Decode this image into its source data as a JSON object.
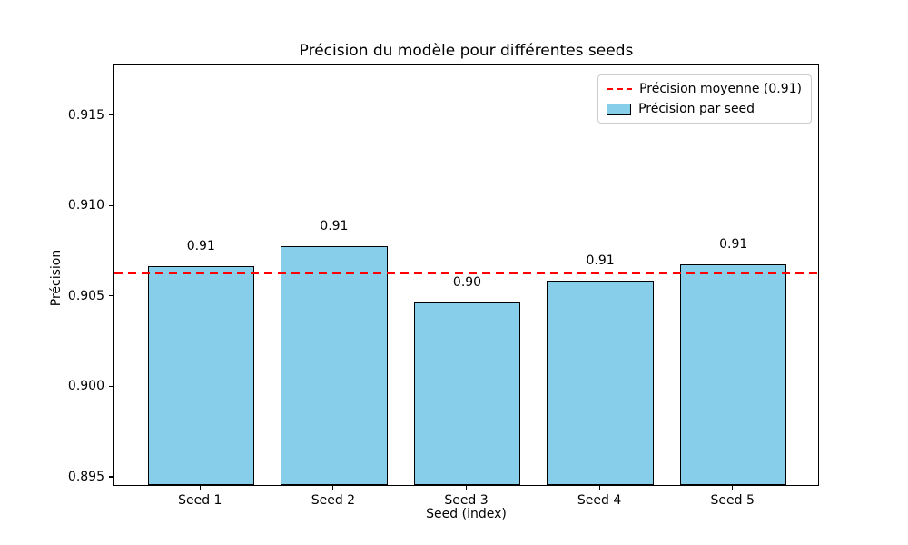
{
  "chart_data": {
    "type": "bar",
    "title": "Précision du modèle pour différentes seeds",
    "xlabel": "Seed (index)",
    "ylabel": "Précision",
    "categories": [
      "Seed 1",
      "Seed 2",
      "Seed 3",
      "Seed 4",
      "Seed 5"
    ],
    "values": [
      0.9066,
      0.9077,
      0.9046,
      0.9058,
      0.9067
    ],
    "bar_value_labels": [
      "0.91",
      "0.91",
      "0.90",
      "0.91",
      "0.91"
    ],
    "mean_line": {
      "value": 0.90628,
      "color": "#ff0000",
      "style": "dashed"
    },
    "legend": [
      {
        "label": "Précision moyenne (0.91)",
        "swatch": "red-dashed-line"
      },
      {
        "label": "Précision par seed",
        "swatch": "skyblue-patch"
      }
    ],
    "legend_position": "upper right",
    "bar_color": "#87ceeb",
    "bar_edge_color": "#000000",
    "bar_width": 0.8,
    "ylim": [
      0.8945,
      0.9178
    ],
    "xlim": [
      -0.65,
      4.65
    ],
    "yticks": {
      "values": [
        0.895,
        0.9,
        0.905,
        0.91,
        0.915
      ],
      "labels": [
        "0.895",
        "0.900",
        "0.905",
        "0.910",
        "0.915"
      ]
    },
    "grid": false
  }
}
